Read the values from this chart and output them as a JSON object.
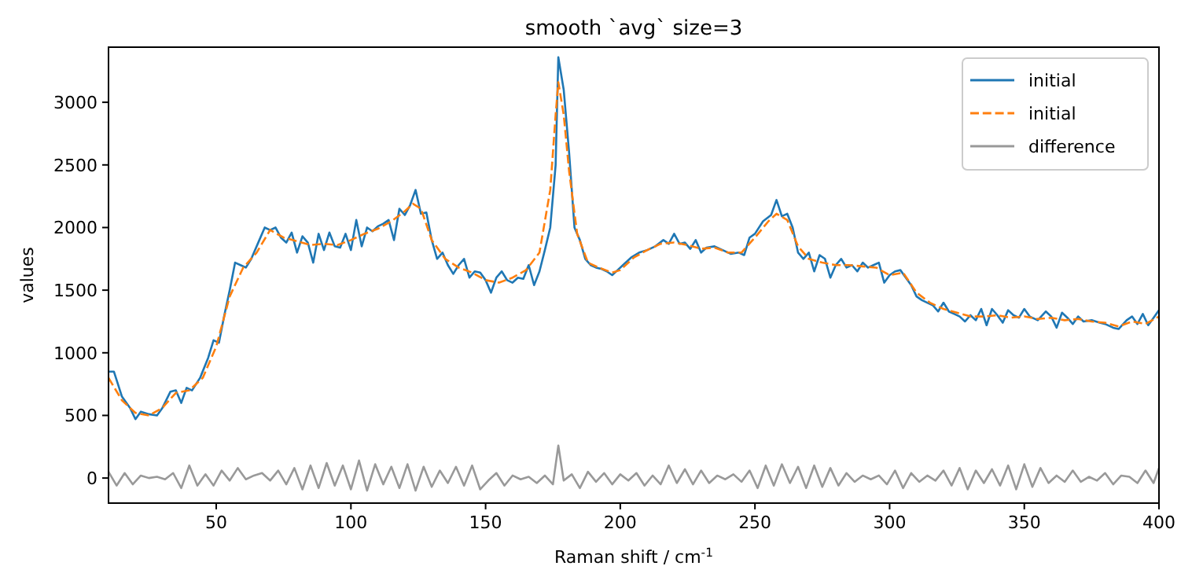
{
  "chart_data": {
    "type": "line",
    "title": "smooth `avg` size=3",
    "xlabel": "Raman shift / cm$^{-1}$",
    "ylabel": "values",
    "xlim": [
      10,
      400
    ],
    "ylim": [
      -200,
      3440
    ],
    "xticks": [
      50,
      100,
      150,
      200,
      250,
      300,
      350,
      400
    ],
    "yticks": [
      0,
      500,
      1000,
      1500,
      2000,
      2500,
      3000
    ],
    "grid": false,
    "legend": "top right",
    "series": [
      {
        "name": "initial",
        "color": "#1f77b4",
        "line_style": "solid",
        "x": [
          10,
          12,
          15,
          18,
          20,
          22,
          25,
          28,
          30,
          33,
          35,
          37,
          39,
          41,
          44,
          47,
          49,
          51,
          53,
          55,
          57,
          59,
          61,
          63,
          66,
          68,
          70,
          72,
          74,
          76,
          78,
          80,
          82,
          84,
          86,
          88,
          90,
          92,
          94,
          96,
          98,
          100,
          102,
          104,
          106,
          108,
          110,
          112,
          114,
          116,
          118,
          120,
          122,
          124,
          126,
          128,
          130,
          132,
          134,
          136,
          138,
          140,
          142,
          144,
          146,
          148,
          150,
          152,
          154,
          156,
          158,
          160,
          162,
          164,
          166,
          168,
          170,
          172,
          174,
          176,
          177,
          179,
          181,
          183,
          185,
          187,
          189,
          191,
          193,
          195,
          197,
          199,
          201,
          204,
          207,
          210,
          213,
          216,
          218,
          220,
          222,
          224,
          226,
          228,
          230,
          232,
          235,
          238,
          241,
          244,
          246,
          248,
          250,
          253,
          256,
          258,
          260,
          262,
          264,
          266,
          268,
          270,
          272,
          274,
          276,
          278,
          280,
          282,
          284,
          286,
          288,
          290,
          292,
          294,
          296,
          298,
          300,
          302,
          304,
          306,
          308,
          310,
          312,
          314,
          316,
          318,
          320,
          322,
          324,
          326,
          328,
          330,
          332,
          334,
          336,
          338,
          340,
          342,
          344,
          346,
          348,
          350,
          352,
          355,
          358,
          360,
          362,
          364,
          366,
          368,
          370,
          372,
          375,
          378,
          380,
          383,
          385,
          388,
          390,
          392,
          394,
          396,
          398,
          400
        ],
        "values": [
          850,
          850,
          650,
          560,
          470,
          530,
          510,
          500,
          560,
          690,
          700,
          600,
          720,
          700,
          800,
          960,
          1100,
          1080,
          1300,
          1500,
          1720,
          1700,
          1680,
          1750,
          1900,
          2000,
          1980,
          2000,
          1920,
          1880,
          1960,
          1800,
          1930,
          1880,
          1720,
          1950,
          1820,
          1960,
          1850,
          1840,
          1950,
          1820,
          2060,
          1850,
          2000,
          1970,
          2010,
          2030,
          2060,
          1900,
          2150,
          2100,
          2180,
          2300,
          2110,
          2120,
          1900,
          1750,
          1800,
          1700,
          1630,
          1700,
          1750,
          1600,
          1650,
          1640,
          1580,
          1480,
          1600,
          1650,
          1580,
          1560,
          1600,
          1590,
          1700,
          1540,
          1650,
          1820,
          2000,
          2500,
          3360,
          3100,
          2600,
          2000,
          1900,
          1750,
          1700,
          1680,
          1670,
          1650,
          1620,
          1660,
          1700,
          1760,
          1800,
          1820,
          1850,
          1900,
          1870,
          1950,
          1870,
          1880,
          1830,
          1900,
          1800,
          1840,
          1850,
          1820,
          1790,
          1800,
          1780,
          1920,
          1950,
          2050,
          2100,
          2220,
          2090,
          2110,
          2000,
          1800,
          1750,
          1800,
          1650,
          1780,
          1750,
          1600,
          1700,
          1750,
          1680,
          1700,
          1650,
          1720,
          1680,
          1700,
          1720,
          1560,
          1620,
          1650,
          1660,
          1600,
          1540,
          1450,
          1420,
          1400,
          1380,
          1330,
          1400,
          1330,
          1310,
          1290,
          1250,
          1300,
          1260,
          1350,
          1220,
          1350,
          1300,
          1240,
          1340,
          1300,
          1280,
          1350,
          1290,
          1260,
          1330,
          1290,
          1200,
          1320,
          1280,
          1230,
          1290,
          1250,
          1260,
          1240,
          1230,
          1200,
          1190,
          1260,
          1290,
          1230,
          1310,
          1220,
          1280,
          1340
        ]
      },
      {
        "name": "initial",
        "color": "#ff7f0e",
        "line_style": "dashed",
        "x": [
          10,
          15,
          20,
          25,
          30,
          35,
          40,
          45,
          50,
          55,
          60,
          65,
          70,
          75,
          80,
          85,
          90,
          95,
          100,
          105,
          110,
          115,
          120,
          123,
          126,
          130,
          135,
          140,
          145,
          150,
          155,
          160,
          165,
          170,
          174,
          176,
          177,
          179,
          181,
          184,
          188,
          192,
          197,
          200,
          205,
          210,
          215,
          220,
          225,
          230,
          235,
          240,
          245,
          250,
          255,
          258,
          262,
          266,
          270,
          275,
          280,
          285,
          290,
          295,
          300,
          305,
          310,
          315,
          320,
          325,
          330,
          335,
          340,
          345,
          350,
          355,
          360,
          365,
          370,
          375,
          380,
          385,
          390,
          395,
          400
        ],
        "values": [
          800,
          620,
          520,
          500,
          560,
          680,
          700,
          800,
          1050,
          1450,
          1680,
          1800,
          1980,
          1920,
          1890,
          1860,
          1870,
          1860,
          1900,
          1950,
          1990,
          2050,
          2130,
          2190,
          2150,
          1900,
          1750,
          1680,
          1640,
          1580,
          1560,
          1600,
          1660,
          1800,
          2300,
          2900,
          3160,
          2900,
          2450,
          1950,
          1720,
          1680,
          1640,
          1660,
          1760,
          1820,
          1870,
          1880,
          1860,
          1830,
          1840,
          1800,
          1800,
          1920,
          2050,
          2110,
          2060,
          1850,
          1750,
          1720,
          1700,
          1700,
          1690,
          1680,
          1620,
          1640,
          1480,
          1400,
          1350,
          1320,
          1290,
          1290,
          1300,
          1280,
          1290,
          1270,
          1280,
          1260,
          1270,
          1250,
          1240,
          1210,
          1250,
          1230,
          1290
        ]
      },
      {
        "name": "difference",
        "color": "#999999",
        "line_style": "solid",
        "x": [
          10,
          13,
          16,
          19,
          22,
          25,
          28,
          31,
          34,
          37,
          40,
          43,
          46,
          49,
          52,
          55,
          58,
          61,
          64,
          67,
          70,
          73,
          76,
          79,
          82,
          85,
          88,
          91,
          94,
          97,
          100,
          103,
          106,
          109,
          112,
          115,
          118,
          121,
          124,
          127,
          130,
          133,
          136,
          139,
          142,
          145,
          148,
          151,
          154,
          157,
          160,
          163,
          166,
          169,
          172,
          175,
          177,
          179,
          182,
          185,
          188,
          191,
          194,
          197,
          200,
          203,
          206,
          209,
          212,
          215,
          218,
          221,
          224,
          227,
          230,
          233,
          236,
          239,
          242,
          245,
          248,
          251,
          254,
          257,
          260,
          263,
          266,
          269,
          272,
          275,
          278,
          281,
          284,
          287,
          290,
          293,
          296,
          299,
          302,
          305,
          308,
          311,
          314,
          317,
          320,
          323,
          326,
          329,
          332,
          335,
          338,
          341,
          344,
          347,
          350,
          353,
          356,
          359,
          362,
          365,
          368,
          371,
          374,
          377,
          380,
          383,
          386,
          389,
          392,
          395,
          398,
          400
        ],
        "values": [
          50,
          -60,
          40,
          -50,
          20,
          0,
          10,
          -10,
          40,
          -80,
          100,
          -60,
          30,
          -60,
          60,
          -20,
          80,
          -10,
          20,
          40,
          -20,
          60,
          -50,
          80,
          -90,
          100,
          -80,
          120,
          -60,
          100,
          -90,
          140,
          -100,
          110,
          -50,
          90,
          -80,
          110,
          -100,
          90,
          -70,
          60,
          -40,
          90,
          -60,
          100,
          -90,
          -20,
          40,
          -60,
          20,
          -10,
          10,
          -40,
          20,
          -50,
          260,
          -20,
          30,
          -80,
          50,
          -30,
          40,
          -50,
          30,
          -20,
          40,
          -60,
          20,
          -50,
          100,
          -40,
          70,
          -50,
          60,
          -40,
          20,
          -10,
          30,
          -30,
          60,
          -80,
          100,
          -60,
          110,
          -40,
          90,
          -80,
          100,
          -70,
          80,
          -60,
          40,
          -30,
          20,
          -10,
          20,
          -50,
          60,
          -80,
          40,
          -30,
          20,
          -20,
          60,
          -60,
          80,
          -90,
          60,
          -40,
          70,
          -60,
          100,
          -90,
          110,
          -70,
          80,
          -40,
          20,
          -30,
          60,
          -30,
          10,
          -20,
          40,
          -50,
          20,
          10,
          -40,
          60,
          -40,
          80
        ]
      }
    ]
  }
}
